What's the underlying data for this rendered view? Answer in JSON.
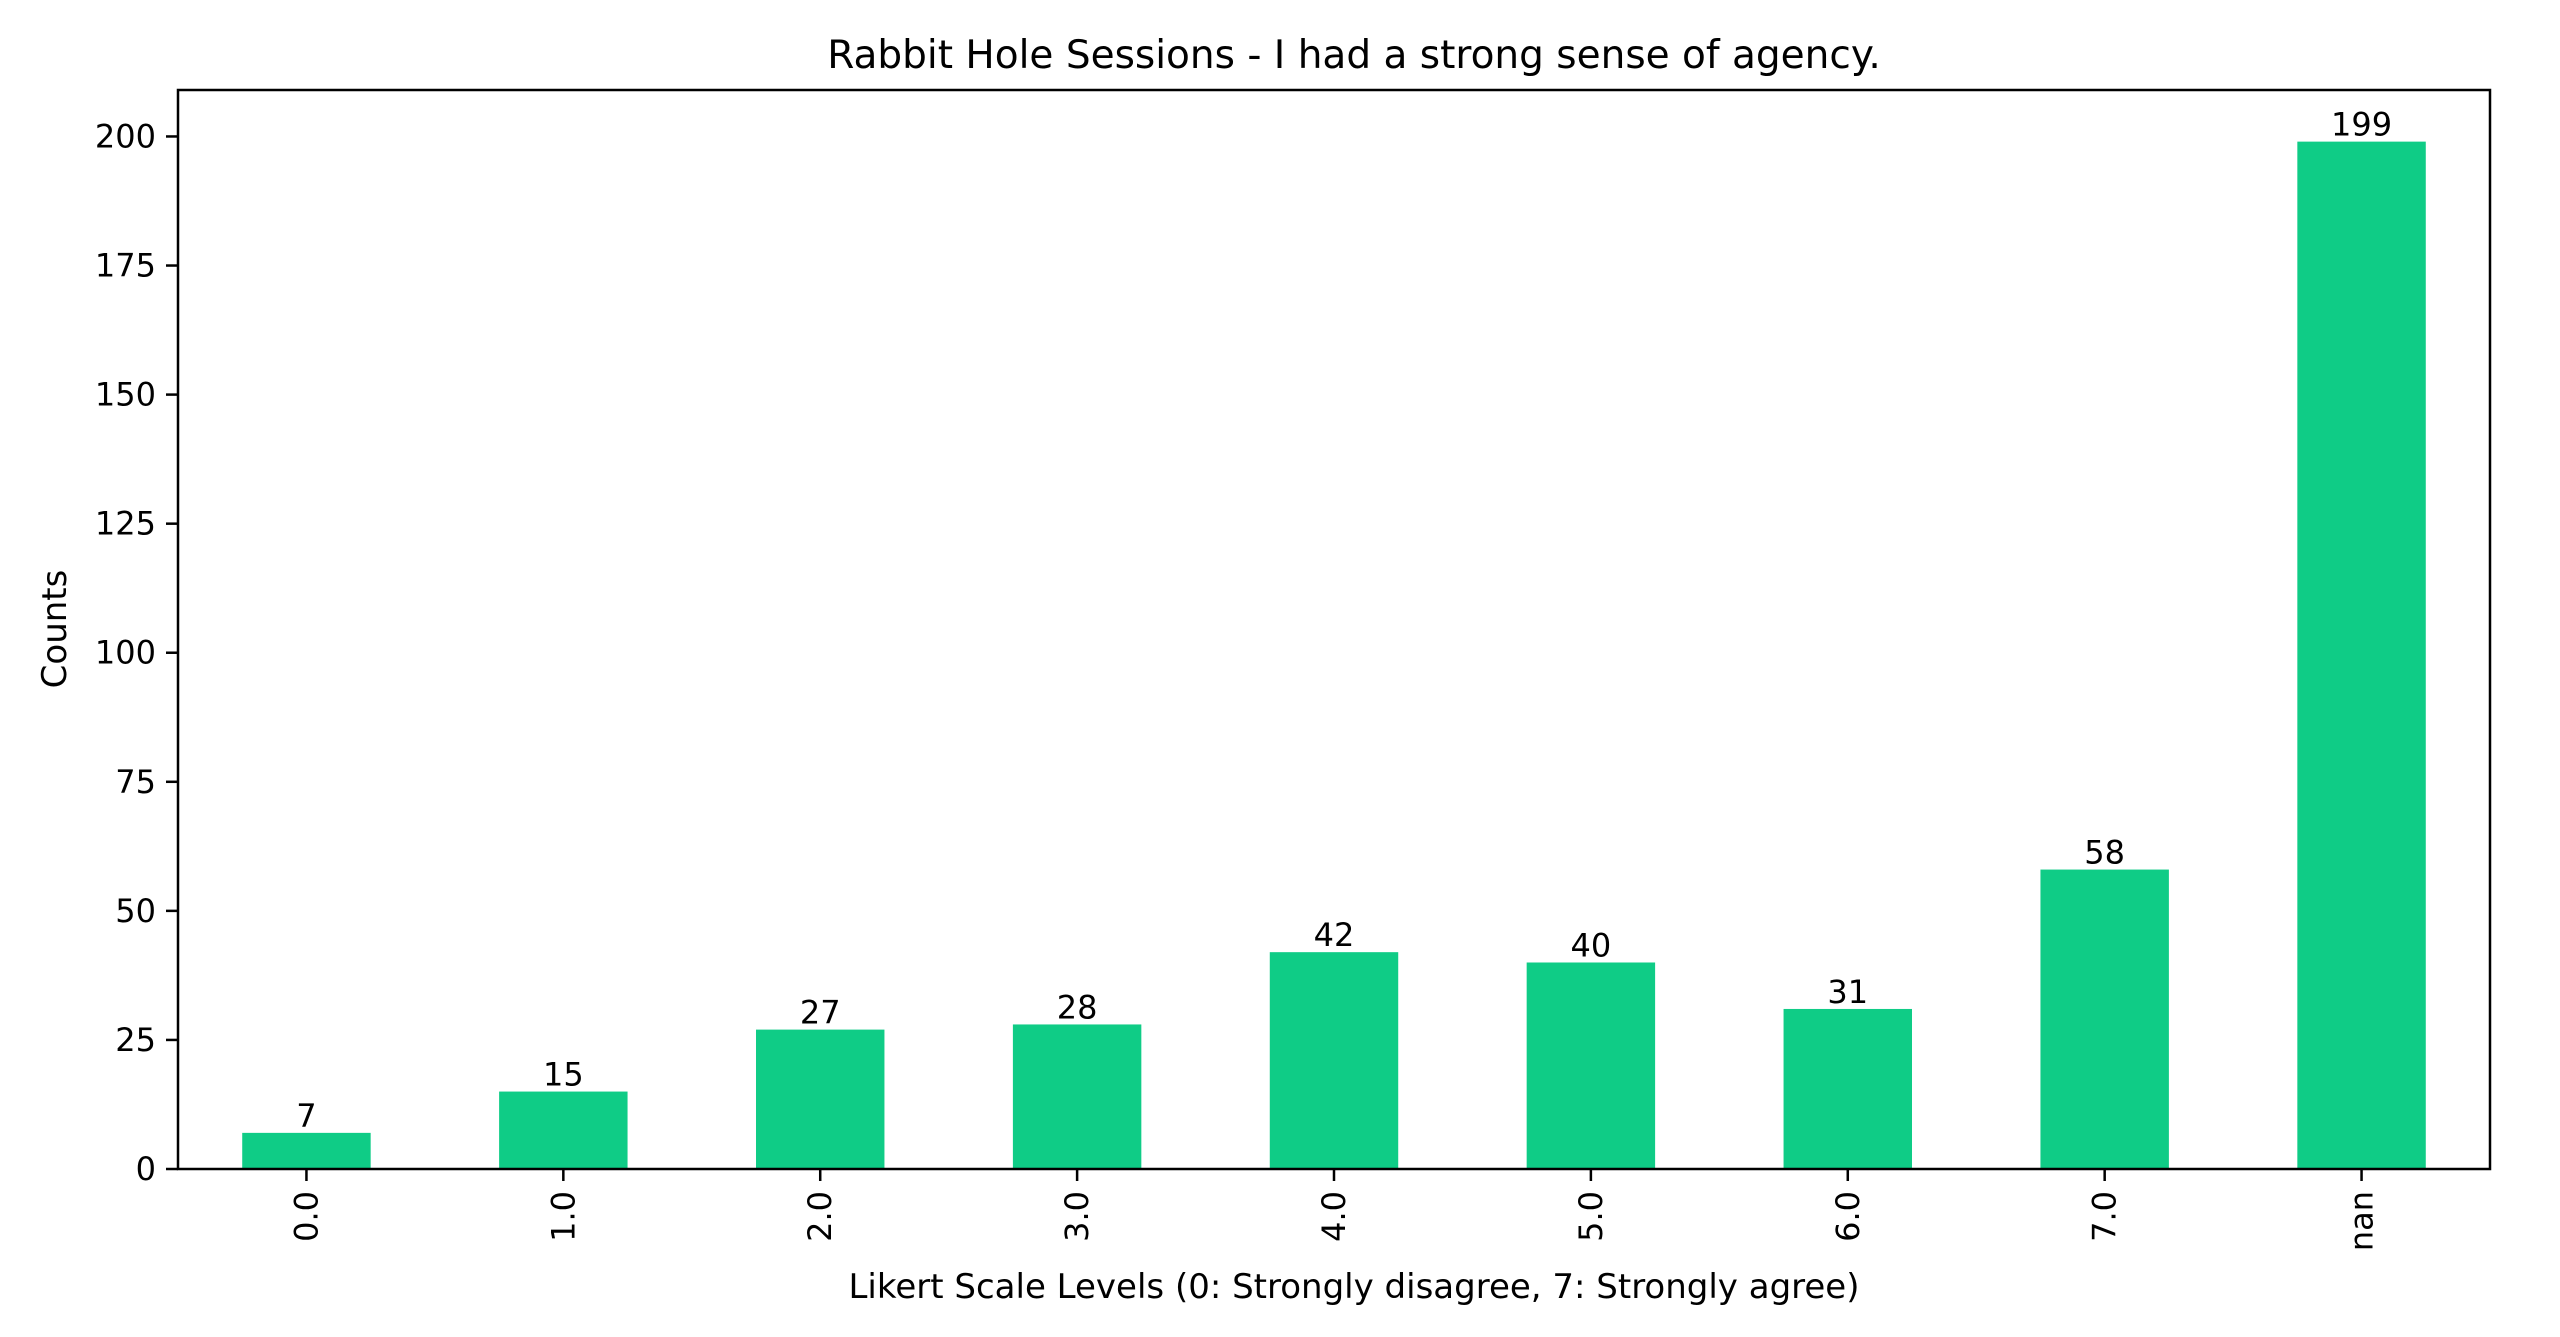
{
  "chart_data": {
    "type": "bar",
    "title": "Rabbit Hole Sessions - I had a strong sense of agency.",
    "xlabel": "Likert Scale Levels (0: Strongly disagree, 7: Strongly agree)",
    "ylabel": "Counts",
    "categories": [
      "0.0",
      "1.0",
      "2.0",
      "3.0",
      "4.0",
      "5.0",
      "6.0",
      "7.0",
      "nan"
    ],
    "values": [
      7,
      15,
      27,
      28,
      42,
      40,
      31,
      58,
      199
    ],
    "ylim": [
      0,
      209
    ],
    "yticks": [
      "0",
      "25",
      "50",
      "75",
      "100",
      "125",
      "150",
      "175",
      "200"
    ],
    "bar_color": "#0fcc86",
    "grid": false,
    "legend": "none",
    "xtick_rotation": "vertical"
  }
}
